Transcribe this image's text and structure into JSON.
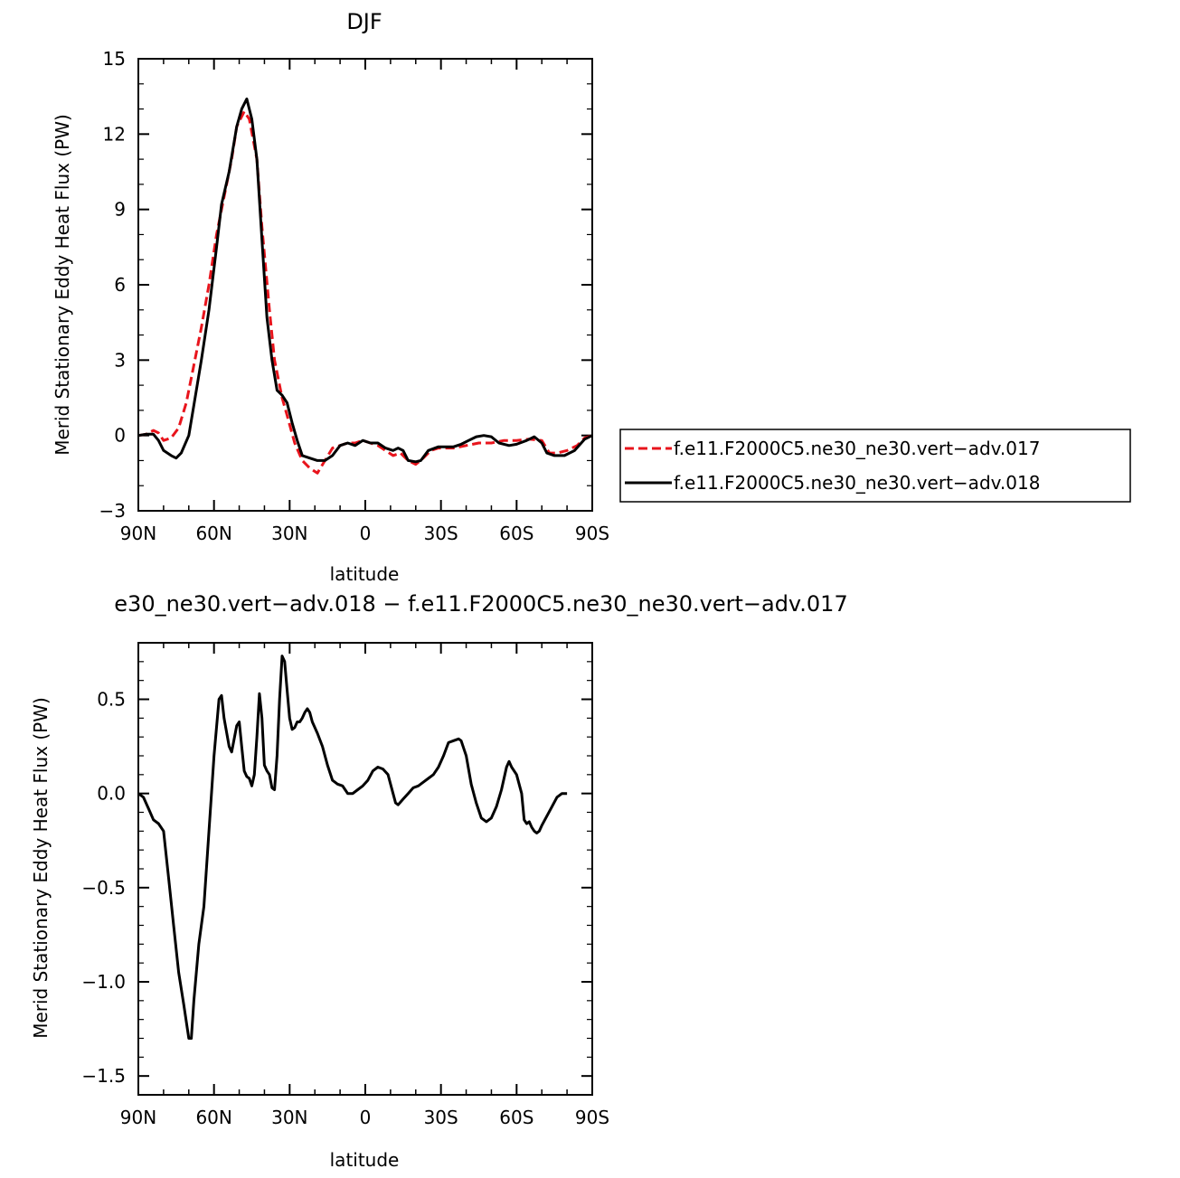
{
  "chart_data": [
    {
      "type": "line",
      "title": "DJF",
      "xlabel": "latitude",
      "ylabel": "Merid Stationary Eddy Heat Flux (PW)",
      "xlim": [
        90,
        -90
      ],
      "ylim": [
        -3,
        15
      ],
      "x_ticks": [
        {
          "value": 90,
          "label": "90N"
        },
        {
          "value": 60,
          "label": "60N"
        },
        {
          "value": 30,
          "label": "30N"
        },
        {
          "value": 0,
          "label": "0"
        },
        {
          "value": -30,
          "label": "30S"
        },
        {
          "value": -60,
          "label": "60S"
        },
        {
          "value": -90,
          "label": "90S"
        }
      ],
      "y_ticks": [
        {
          "value": 15,
          "label": "15"
        },
        {
          "value": 12,
          "label": "12"
        },
        {
          "value": 9,
          "label": "9"
        },
        {
          "value": 6,
          "label": "6"
        },
        {
          "value": 3,
          "label": "3"
        },
        {
          "value": 0,
          "label": "0"
        },
        {
          "value": -3,
          "label": "−3"
        }
      ],
      "legend": "right",
      "series": [
        {
          "name": "f.e11.F2000C5.ne30_ne30.vert−adv.017",
          "color": "#e8141c",
          "dashed": true,
          "points": [
            [
              90,
              0.0
            ],
            [
              87,
              0.05
            ],
            [
              84,
              0.2
            ],
            [
              82,
              0.1
            ],
            [
              80,
              -0.2
            ],
            [
              77,
              -0.1
            ],
            [
              74,
              0.3
            ],
            [
              71,
              1.3
            ],
            [
              68,
              2.8
            ],
            [
              65,
              4.3
            ],
            [
              62,
              6.0
            ],
            [
              59,
              8.0
            ],
            [
              56,
              9.5
            ],
            [
              53,
              11.0
            ],
            [
              51,
              12.3
            ],
            [
              48,
              12.9
            ],
            [
              46,
              12.6
            ],
            [
              43,
              11.0
            ],
            [
              41,
              8.3
            ],
            [
              38,
              5.0
            ],
            [
              36,
              3.0
            ],
            [
              33,
              1.5
            ],
            [
              31,
              0.8
            ],
            [
              28,
              -0.3
            ],
            [
              25,
              -1.0
            ],
            [
              22,
              -1.3
            ],
            [
              19,
              -1.5
            ],
            [
              16,
              -1.0
            ],
            [
              13,
              -0.5
            ],
            [
              10,
              -0.4
            ],
            [
              7,
              -0.3
            ],
            [
              4,
              -0.3
            ],
            [
              1,
              -0.2
            ],
            [
              -2,
              -0.3
            ],
            [
              -5,
              -0.4
            ],
            [
              -8,
              -0.6
            ],
            [
              -11,
              -0.8
            ],
            [
              -14,
              -0.7
            ],
            [
              -17,
              -1.0
            ],
            [
              -20,
              -1.15
            ],
            [
              -23,
              -0.9
            ],
            [
              -26,
              -0.6
            ],
            [
              -29,
              -0.5
            ],
            [
              -32,
              -0.5
            ],
            [
              -35,
              -0.5
            ],
            [
              -40,
              -0.4
            ],
            [
              -45,
              -0.3
            ],
            [
              -50,
              -0.3
            ],
            [
              -55,
              -0.2
            ],
            [
              -60,
              -0.2
            ],
            [
              -65,
              -0.15
            ],
            [
              -70,
              -0.2
            ],
            [
              -73,
              -0.7
            ],
            [
              -76,
              -0.7
            ],
            [
              -80,
              -0.6
            ],
            [
              -84,
              -0.4
            ],
            [
              -87,
              -0.1
            ],
            [
              -90,
              0.0
            ]
          ]
        },
        {
          "name": "f.e11.F2000C5.ne30_ne30.vert−adv.018",
          "color": "#000000",
          "dashed": false,
          "points": [
            [
              90,
              0.0
            ],
            [
              87,
              0.05
            ],
            [
              84,
              0.05
            ],
            [
              82,
              -0.2
            ],
            [
              80,
              -0.6
            ],
            [
              77,
              -0.8
            ],
            [
              75,
              -0.9
            ],
            [
              73,
              -0.7
            ],
            [
              70,
              0.0
            ],
            [
              68,
              1.2
            ],
            [
              65,
              3.0
            ],
            [
              62,
              5.0
            ],
            [
              59,
              7.5
            ],
            [
              57,
              9.2
            ],
            [
              54,
              10.5
            ],
            [
              51,
              12.3
            ],
            [
              49,
              13.0
            ],
            [
              47,
              13.4
            ],
            [
              45,
              12.6
            ],
            [
              43,
              11.0
            ],
            [
              41,
              7.8
            ],
            [
              39,
              4.7
            ],
            [
              37,
              3.0
            ],
            [
              35,
              1.8
            ],
            [
              33,
              1.6
            ],
            [
              31,
              1.3
            ],
            [
              29,
              0.5
            ],
            [
              27,
              -0.2
            ],
            [
              25,
              -0.8
            ],
            [
              22,
              -0.9
            ],
            [
              19,
              -1.0
            ],
            [
              16,
              -1.0
            ],
            [
              13,
              -0.8
            ],
            [
              10,
              -0.4
            ],
            [
              7,
              -0.3
            ],
            [
              4,
              -0.4
            ],
            [
              1,
              -0.2
            ],
            [
              -2,
              -0.3
            ],
            [
              -5,
              -0.3
            ],
            [
              -8,
              -0.5
            ],
            [
              -11,
              -0.6
            ],
            [
              -13,
              -0.5
            ],
            [
              -15,
              -0.6
            ],
            [
              -17,
              -1.0
            ],
            [
              -20,
              -1.05
            ],
            [
              -22,
              -1.0
            ],
            [
              -25,
              -0.6
            ],
            [
              -29,
              -0.45
            ],
            [
              -32,
              -0.45
            ],
            [
              -35,
              -0.45
            ],
            [
              -38,
              -0.35
            ],
            [
              -41,
              -0.2
            ],
            [
              -44,
              -0.05
            ],
            [
              -47,
              0.0
            ],
            [
              -50,
              -0.05
            ],
            [
              -53,
              -0.3
            ],
            [
              -57,
              -0.4
            ],
            [
              -60,
              -0.35
            ],
            [
              -64,
              -0.2
            ],
            [
              -67,
              -0.05
            ],
            [
              -70,
              -0.3
            ],
            [
              -72,
              -0.7
            ],
            [
              -75,
              -0.8
            ],
            [
              -79,
              -0.8
            ],
            [
              -83,
              -0.6
            ],
            [
              -87,
              -0.15
            ],
            [
              -90,
              0.0
            ]
          ]
        }
      ]
    },
    {
      "type": "line",
      "title": "e30_ne30.vert−adv.018 − f.e11.F2000C5.ne30_ne30.vert−adv.017",
      "xlabel": "latitude",
      "ylabel": "Merid Stationary Eddy Heat Flux (PW)",
      "xlim": [
        90,
        -90
      ],
      "ylim": [
        -1.6,
        0.8
      ],
      "x_ticks": [
        {
          "value": 90,
          "label": "90N"
        },
        {
          "value": 60,
          "label": "60N"
        },
        {
          "value": 30,
          "label": "30N"
        },
        {
          "value": 0,
          "label": "0"
        },
        {
          "value": -30,
          "label": "30S"
        },
        {
          "value": -60,
          "label": "60S"
        },
        {
          "value": -90,
          "label": "90S"
        }
      ],
      "y_ticks": [
        {
          "value": 0.5,
          "label": "0.5"
        },
        {
          "value": 0.0,
          "label": "0.0"
        },
        {
          "value": -0.5,
          "label": "−0.5"
        },
        {
          "value": -1.0,
          "label": "−1.0"
        },
        {
          "value": -1.5,
          "label": "−1.5"
        }
      ],
      "series": [
        {
          "color": "#000000",
          "dashed": false,
          "points": [
            [
              90,
              0.0
            ],
            [
              88,
              -0.02
            ],
            [
              86,
              -0.08
            ],
            [
              84,
              -0.14
            ],
            [
              82,
              -0.16
            ],
            [
              80,
              -0.2
            ],
            [
              78,
              -0.45
            ],
            [
              76,
              -0.7
            ],
            [
              74,
              -0.95
            ],
            [
              72,
              -1.12
            ],
            [
              70,
              -1.3
            ],
            [
              69,
              -1.3
            ],
            [
              68,
              -1.1
            ],
            [
              66,
              -0.8
            ],
            [
              64,
              -0.6
            ],
            [
              62,
              -0.2
            ],
            [
              60,
              0.2
            ],
            [
              58,
              0.5
            ],
            [
              57,
              0.52
            ],
            [
              56,
              0.4
            ],
            [
              54,
              0.25
            ],
            [
              53,
              0.22
            ],
            [
              51,
              0.36
            ],
            [
              50,
              0.38
            ],
            [
              49,
              0.25
            ],
            [
              48,
              0.12
            ],
            [
              47,
              0.09
            ],
            [
              46,
              0.08
            ],
            [
              45,
              0.04
            ],
            [
              44,
              0.1
            ],
            [
              43,
              0.3
            ],
            [
              42,
              0.53
            ],
            [
              41,
              0.4
            ],
            [
              40,
              0.15
            ],
            [
              39,
              0.12
            ],
            [
              38,
              0.1
            ],
            [
              37,
              0.03
            ],
            [
              36,
              0.02
            ],
            [
              35,
              0.2
            ],
            [
              34,
              0.5
            ],
            [
              33,
              0.73
            ],
            [
              32,
              0.7
            ],
            [
              31,
              0.55
            ],
            [
              30,
              0.4
            ],
            [
              29,
              0.34
            ],
            [
              28,
              0.35
            ],
            [
              27,
              0.38
            ],
            [
              26,
              0.38
            ],
            [
              25,
              0.4
            ],
            [
              24,
              0.43
            ],
            [
              23,
              0.45
            ],
            [
              22,
              0.43
            ],
            [
              21,
              0.38
            ],
            [
              19,
              0.32
            ],
            [
              17,
              0.25
            ],
            [
              15,
              0.15
            ],
            [
              13,
              0.07
            ],
            [
              11,
              0.05
            ],
            [
              9,
              0.04
            ],
            [
              8,
              0.02
            ],
            [
              7,
              0.0
            ],
            [
              5,
              0.0
            ],
            [
              3,
              0.02
            ],
            [
              1,
              0.04
            ],
            [
              -1,
              0.07
            ],
            [
              -3,
              0.12
            ],
            [
              -5,
              0.14
            ],
            [
              -7,
              0.13
            ],
            [
              -9,
              0.1
            ],
            [
              -10,
              0.05
            ],
            [
              -11,
              0.0
            ],
            [
              -12,
              -0.05
            ],
            [
              -13,
              -0.06
            ],
            [
              -15,
              -0.03
            ],
            [
              -17,
              0.0
            ],
            [
              -19,
              0.03
            ],
            [
              -21,
              0.04
            ],
            [
              -23,
              0.06
            ],
            [
              -25,
              0.08
            ],
            [
              -27,
              0.1
            ],
            [
              -29,
              0.14
            ],
            [
              -31,
              0.2
            ],
            [
              -33,
              0.27
            ],
            [
              -35,
              0.28
            ],
            [
              -37,
              0.29
            ],
            [
              -38,
              0.28
            ],
            [
              -40,
              0.2
            ],
            [
              -42,
              0.05
            ],
            [
              -44,
              -0.05
            ],
            [
              -46,
              -0.13
            ],
            [
              -48,
              -0.15
            ],
            [
              -50,
              -0.13
            ],
            [
              -52,
              -0.07
            ],
            [
              -54,
              0.02
            ],
            [
              -56,
              0.14
            ],
            [
              -57,
              0.17
            ],
            [
              -58,
              0.14
            ],
            [
              -60,
              0.1
            ],
            [
              -62,
              0.0
            ],
            [
              -63,
              -0.14
            ],
            [
              -64,
              -0.16
            ],
            [
              -65,
              -0.15
            ],
            [
              -66,
              -0.18
            ],
            [
              -67,
              -0.2
            ],
            [
              -68,
              -0.21
            ],
            [
              -69,
              -0.2
            ],
            [
              -70,
              -0.17
            ],
            [
              -72,
              -0.12
            ],
            [
              -74,
              -0.07
            ],
            [
              -76,
              -0.02
            ],
            [
              -78,
              0.0
            ],
            [
              -80,
              0.0
            ]
          ]
        }
      ]
    }
  ]
}
